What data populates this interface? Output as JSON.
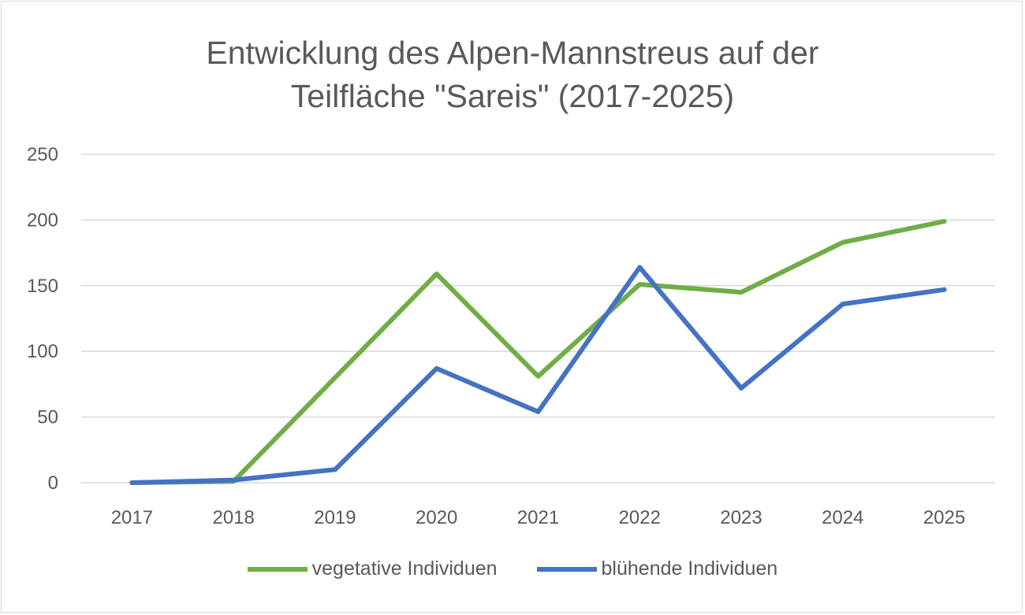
{
  "chart_data": {
    "type": "line",
    "title_line1": "Entwicklung des Alpen-Mannstreus auf der",
    "title_line2": "Teilfläche \"Sareis\" (2017-2025)",
    "categories": [
      "2017",
      "2018",
      "2019",
      "2020",
      "2021",
      "2022",
      "2023",
      "2024",
      "2025"
    ],
    "ylim": [
      0,
      250
    ],
    "yticks": [
      0,
      50,
      100,
      150,
      200,
      250
    ],
    "grid": true,
    "legend_position": "bottom",
    "series": [
      {
        "name": "vegetative Individuen",
        "color": "#70ad47",
        "values": [
          0,
          1,
          80,
          159,
          81,
          151,
          145,
          183,
          199
        ]
      },
      {
        "name": "blühende Individuen",
        "color": "#4472c4",
        "values": [
          0,
          2,
          10,
          87,
          54,
          164,
          72,
          136,
          147
        ]
      }
    ]
  }
}
